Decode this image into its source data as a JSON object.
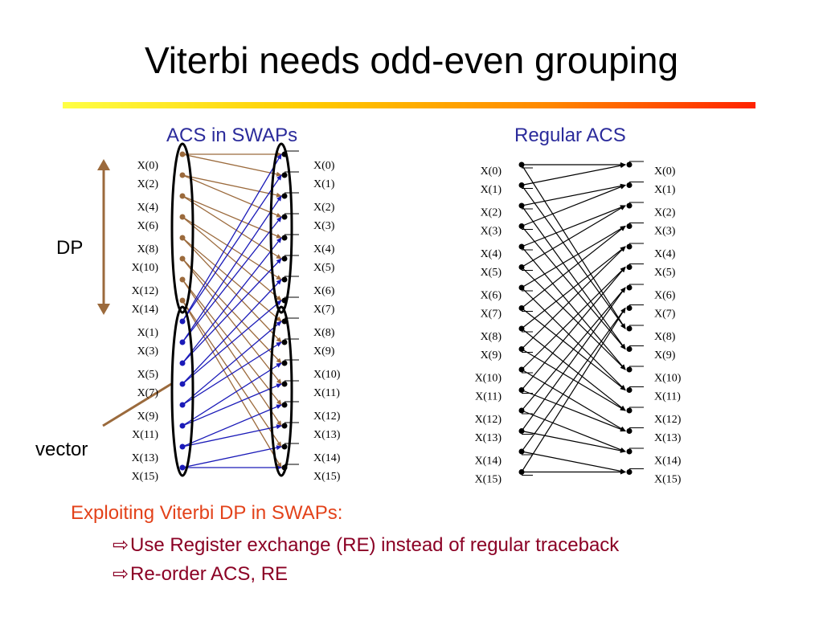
{
  "title": "Viterbi needs odd-even grouping",
  "left_subtitle": "ACS in SWAPs",
  "right_subtitle": "Regular ACS",
  "dp_label": "DP",
  "vector_label": "vector",
  "left_input_labels": [
    "X(0)",
    "X(2)",
    "X(4)",
    "X(6)",
    "X(8)",
    "X(10)",
    "X(12)",
    "X(14)",
    "X(1)",
    "X(3)",
    "X(5)",
    "X(7)",
    "X(9)",
    "X(11)",
    "X(13)",
    "X(15)"
  ],
  "left_output_labels": [
    "X(0)",
    "X(1)",
    "X(2)",
    "X(3)",
    "X(4)",
    "X(5)",
    "X(6)",
    "X(7)",
    "X(8)",
    "X(9)",
    "X(10)",
    "X(11)",
    "X(12)",
    "X(13)",
    "X(14)",
    "X(15)"
  ],
  "right_input_labels": [
    "X(0)",
    "X(1)",
    "X(2)",
    "X(3)",
    "X(4)",
    "X(5)",
    "X(6)",
    "X(7)",
    "X(8)",
    "X(9)",
    "X(10)",
    "X(11)",
    "X(12)",
    "X(13)",
    "X(14)",
    "X(15)"
  ],
  "right_output_labels": [
    "X(0)",
    "X(1)",
    "X(2)",
    "X(3)",
    "X(4)",
    "X(5)",
    "X(6)",
    "X(7)",
    "X(8)",
    "X(9)",
    "X(10)",
    "X(11)",
    "X(12)",
    "X(13)",
    "X(14)",
    "X(15)"
  ],
  "colors": {
    "even_path": "#9b6a3c",
    "odd_path": "#1a1ab8",
    "regular_path": "#000000",
    "subtitle": "#2b2b9b"
  },
  "bullets": {
    "heading": "Exploiting Viterbi DP in SWAPs:",
    "items": [
      {
        "arrow": "⇨",
        "text": "Use Register exchange (RE) instead of regular traceback"
      },
      {
        "arrow": "⇨",
        "text": "Re-order ACS, RE"
      }
    ]
  }
}
